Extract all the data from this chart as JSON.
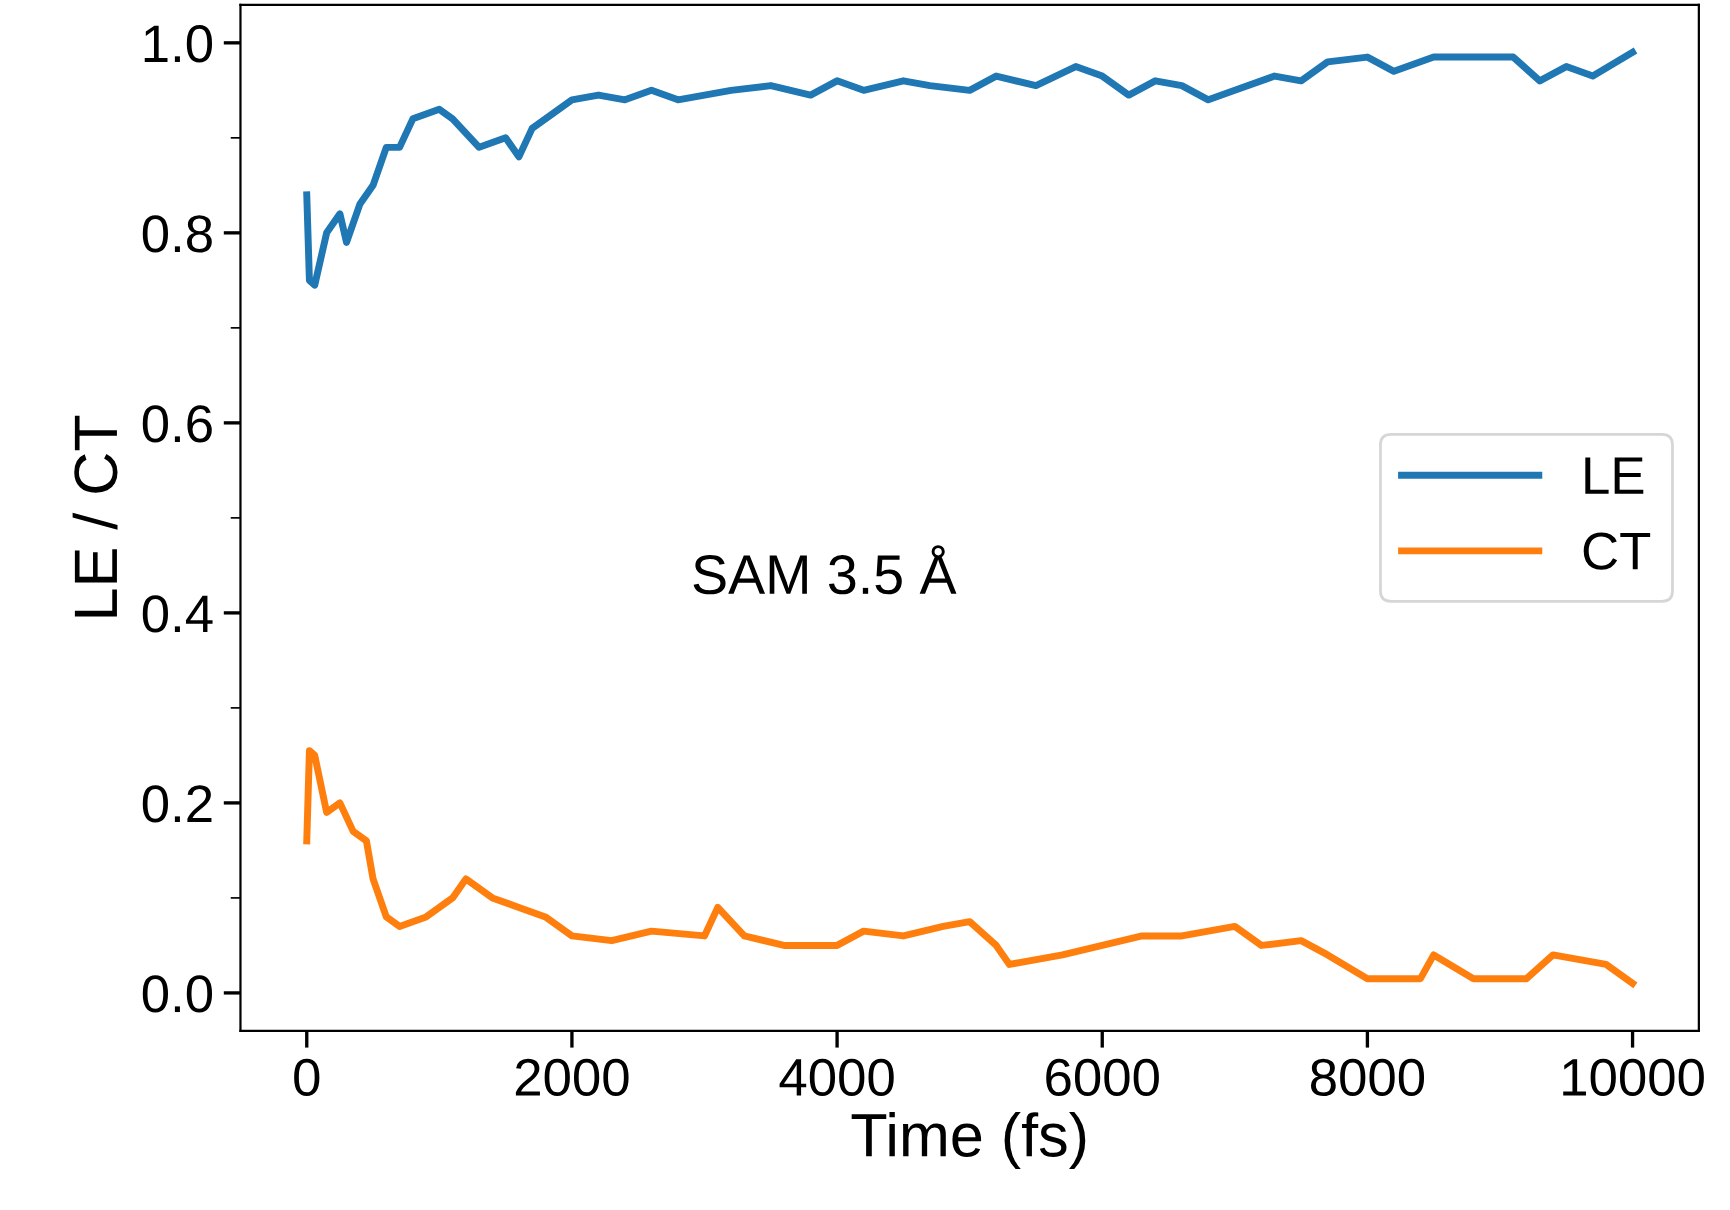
{
  "chart_data": {
    "type": "line",
    "xlabel": "Time (fs)",
    "ylabel": "LE / CT",
    "annotations": [
      "SAM 3.5 Å"
    ],
    "xlim": [
      -500,
      10500
    ],
    "xticks": [
      0,
      2000,
      4000,
      6000,
      8000,
      10000
    ],
    "ylim": [
      -0.04,
      1.04
    ],
    "yticks": [
      {
        "value": 0,
        "label": "0.0"
      },
      0.2,
      0.4,
      0.6,
      0.8,
      {
        "value": 1,
        "label": "1.0"
      }
    ],
    "grid": false,
    "legend": "right",
    "series": [
      {
        "name": "LE",
        "color": "#1f77b4",
        "x": [
          0,
          20,
          60,
          150,
          250,
          300,
          400,
          500,
          600,
          700,
          800,
          1000,
          1100,
          1300,
          1500,
          1600,
          1700,
          1900,
          2000,
          2200,
          2400,
          2600,
          2800,
          3000,
          3200,
          3500,
          3800,
          4000,
          4200,
          4500,
          4700,
          5000,
          5200,
          5500,
          5800,
          6000,
          6200,
          6400,
          6600,
          6800,
          7000,
          7300,
          7500,
          7700,
          8000,
          8200,
          8500,
          8800,
          9100,
          9300,
          9500,
          9700,
          10000
        ],
        "values": [
          0.84,
          0.75,
          0.745,
          0.8,
          0.82,
          0.79,
          0.83,
          0.85,
          0.89,
          0.89,
          0.92,
          0.93,
          0.92,
          0.89,
          0.9,
          0.88,
          0.91,
          0.93,
          0.94,
          0.945,
          0.94,
          0.95,
          0.94,
          0.945,
          0.95,
          0.955,
          0.945,
          0.96,
          0.95,
          0.96,
          0.955,
          0.95,
          0.965,
          0.955,
          0.975,
          0.965,
          0.945,
          0.96,
          0.955,
          0.94,
          0.95,
          0.965,
          0.96,
          0.98,
          0.985,
          0.97,
          0.985,
          0.985,
          0.985,
          0.96,
          0.975,
          0.965,
          0.99
        ]
      },
      {
        "name": "CT",
        "color": "#ff7f0e",
        "x": [
          0,
          20,
          60,
          150,
          250,
          350,
          450,
          500,
          600,
          700,
          900,
          1100,
          1200,
          1400,
          1600,
          1800,
          2000,
          2300,
          2600,
          3000,
          3100,
          3300,
          3600,
          4000,
          4200,
          4500,
          4800,
          5000,
          5200,
          5300,
          5700,
          6000,
          6300,
          6600,
          7000,
          7200,
          7500,
          7700,
          8000,
          8400,
          8500,
          8800,
          9200,
          9400,
          9600,
          9800,
          10000
        ],
        "values": [
          0.16,
          0.255,
          0.25,
          0.19,
          0.2,
          0.17,
          0.16,
          0.12,
          0.08,
          0.07,
          0.08,
          0.1,
          0.12,
          0.1,
          0.09,
          0.08,
          0.06,
          0.055,
          0.065,
          0.06,
          0.09,
          0.06,
          0.05,
          0.05,
          0.065,
          0.06,
          0.07,
          0.075,
          0.05,
          0.03,
          0.04,
          0.05,
          0.06,
          0.06,
          0.07,
          0.05,
          0.055,
          0.04,
          0.015,
          0.015,
          0.04,
          0.015,
          0.015,
          0.04,
          0.035,
          0.03,
          0.01
        ]
      }
    ]
  }
}
